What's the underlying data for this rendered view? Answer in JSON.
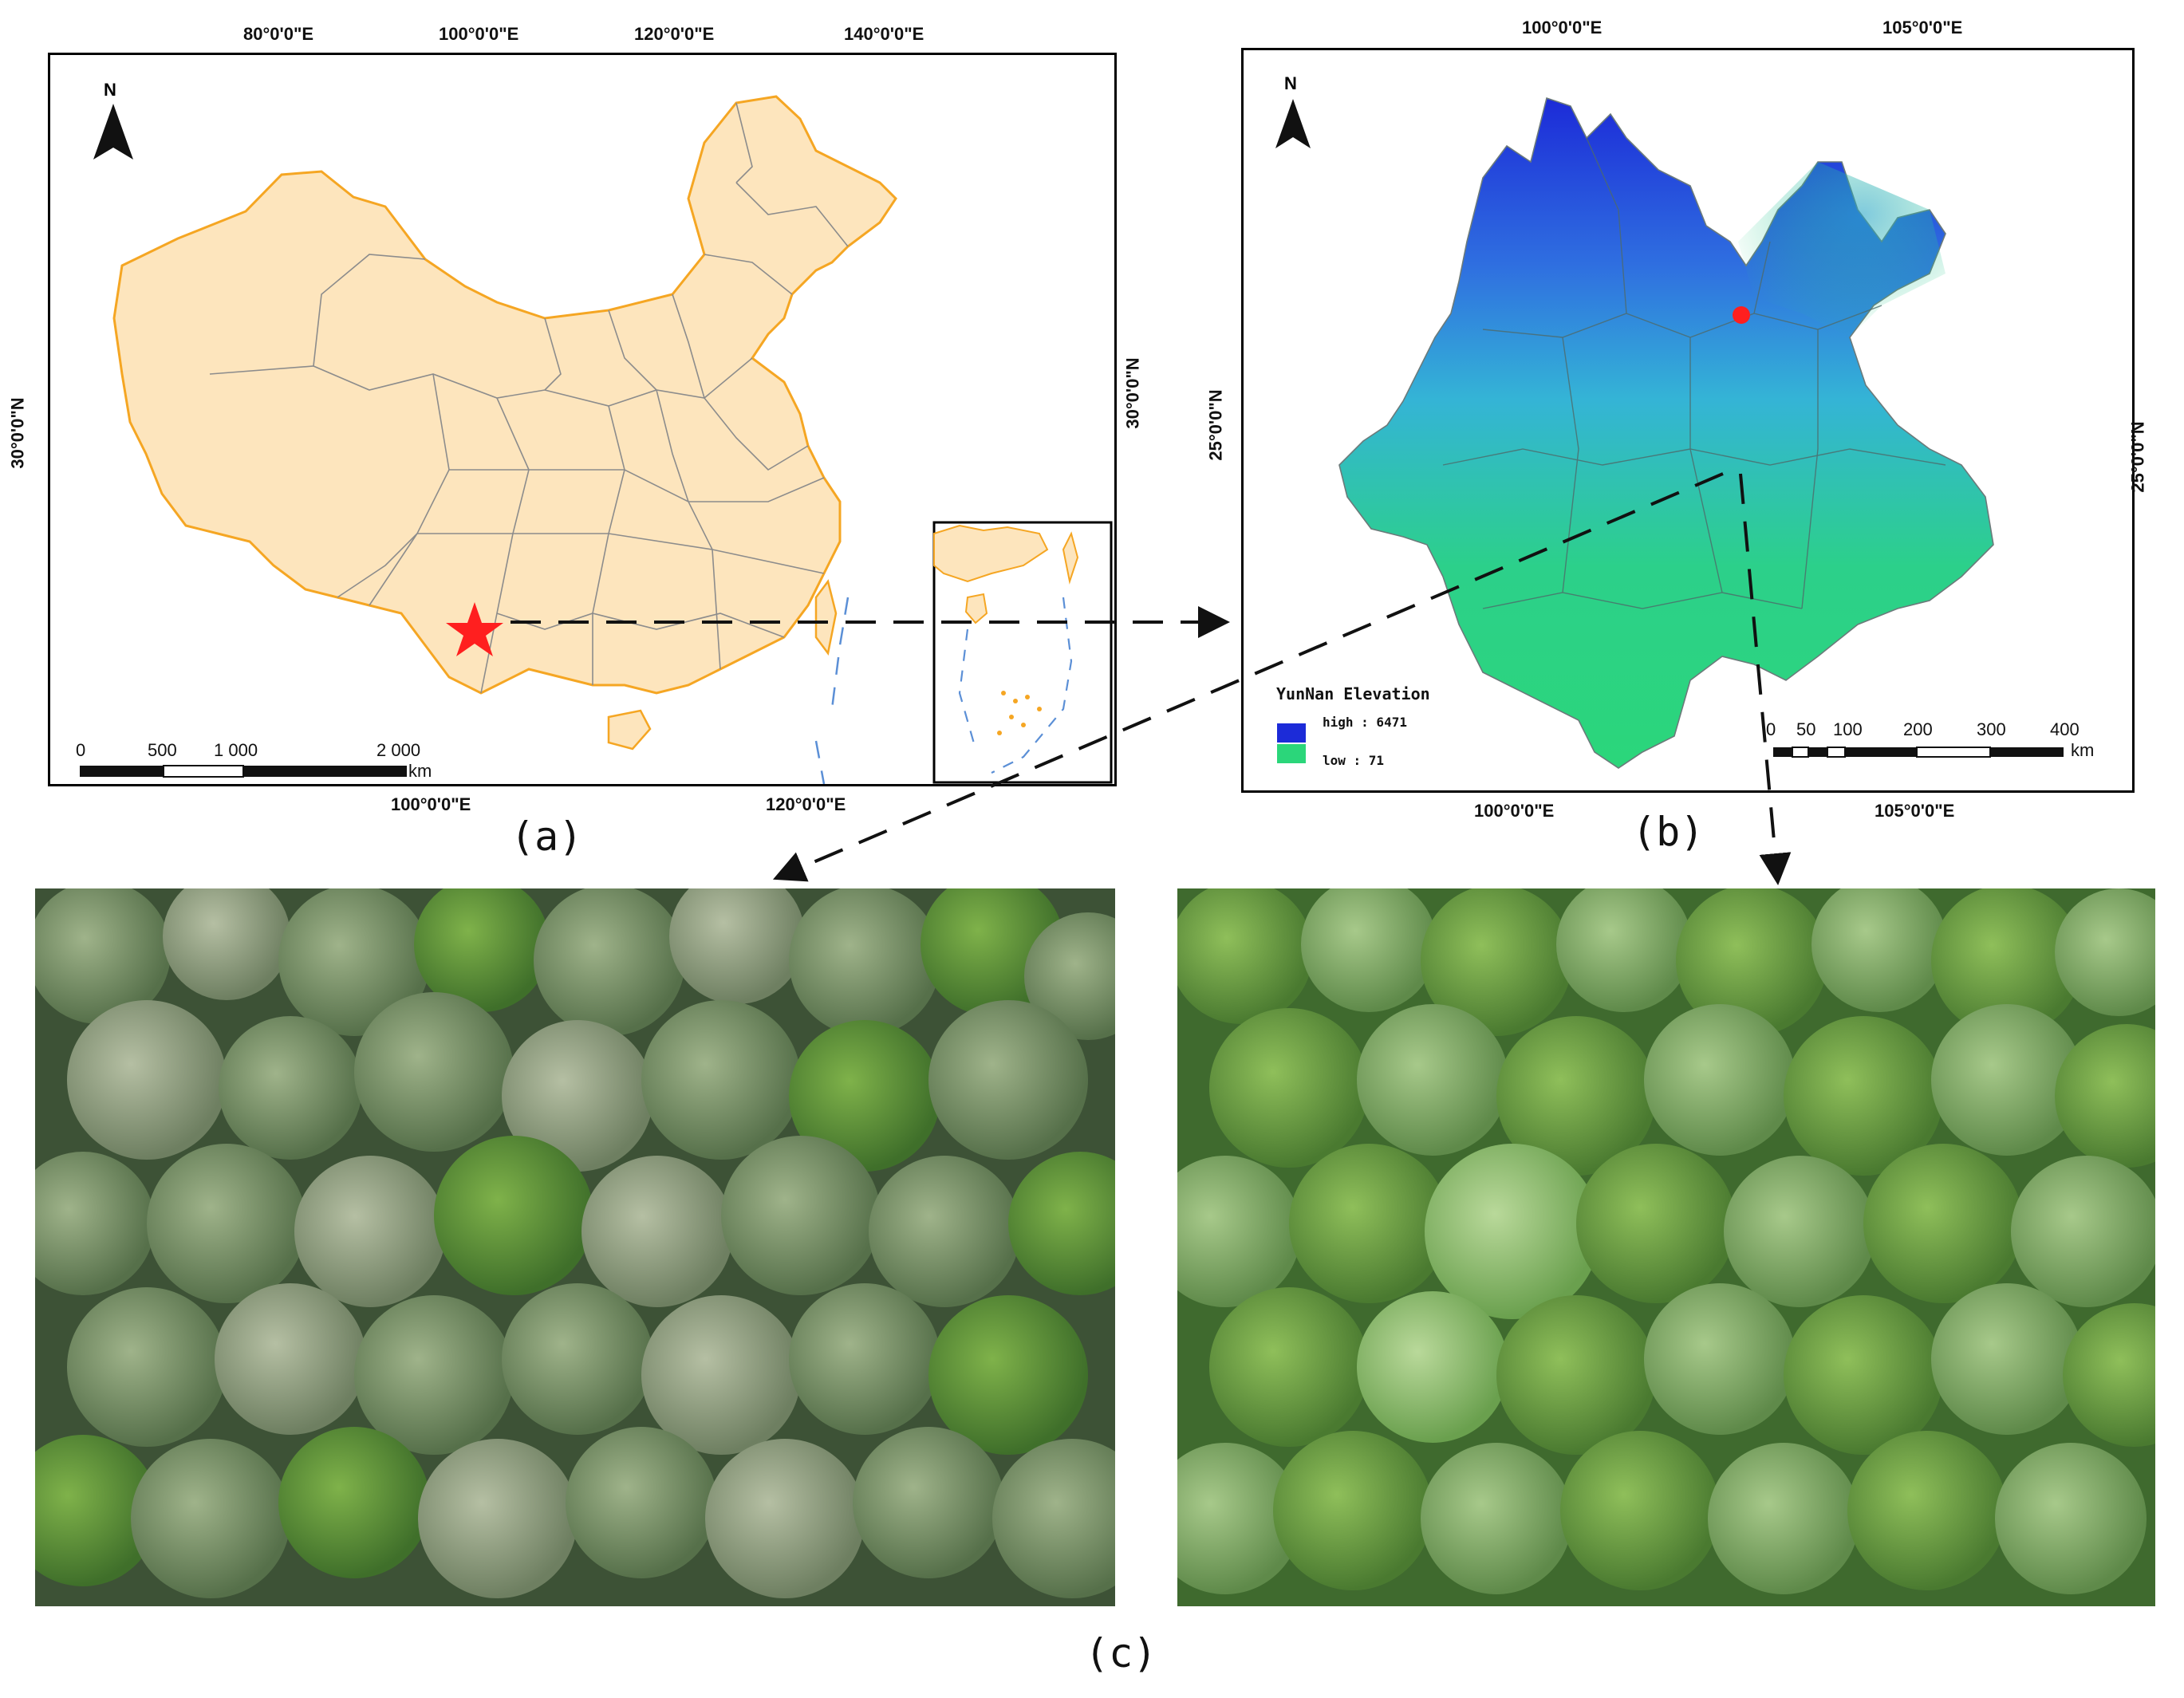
{
  "panel_a": {
    "label": "(a)",
    "top_ticks": [
      "80°0'0\"E",
      "100°0'0\"E",
      "120°0'0\"E",
      "140°0'0\"E"
    ],
    "bottom_ticks": [
      "100°0'0\"E",
      "120°0'0\"E"
    ],
    "left_tick": "30°0'0\"N",
    "right_tick": "30°0'0\"N",
    "north_label": "N",
    "scale_labels": [
      "0",
      "500",
      "1 000",
      "2 000"
    ],
    "scale_unit": "km",
    "land_color": "#fde5bd",
    "border_color": "#f5a623",
    "star_color": "#ff1f1f"
  },
  "panel_b": {
    "label": "(b)",
    "top_ticks": [
      "100°0'0\"E",
      "105°0'0\"E"
    ],
    "bottom_ticks": [
      "100°0'0\"E",
      "105°0'0\"E"
    ],
    "left_tick": "25°0'0\"N",
    "right_tick": "25°0'0\"N",
    "north_label": "N",
    "legend": {
      "title": "YunNan Elevation",
      "high": "high : 6471",
      "low": "low : 71"
    },
    "scale_labels": [
      "0",
      "50",
      "100",
      "200",
      "300",
      "400"
    ],
    "scale_unit": "km",
    "point_color": "#ff1f1f",
    "high_color": "#1a2fd6",
    "low_color": "#2bd67a"
  },
  "panel_c": {
    "label": "(c)"
  }
}
